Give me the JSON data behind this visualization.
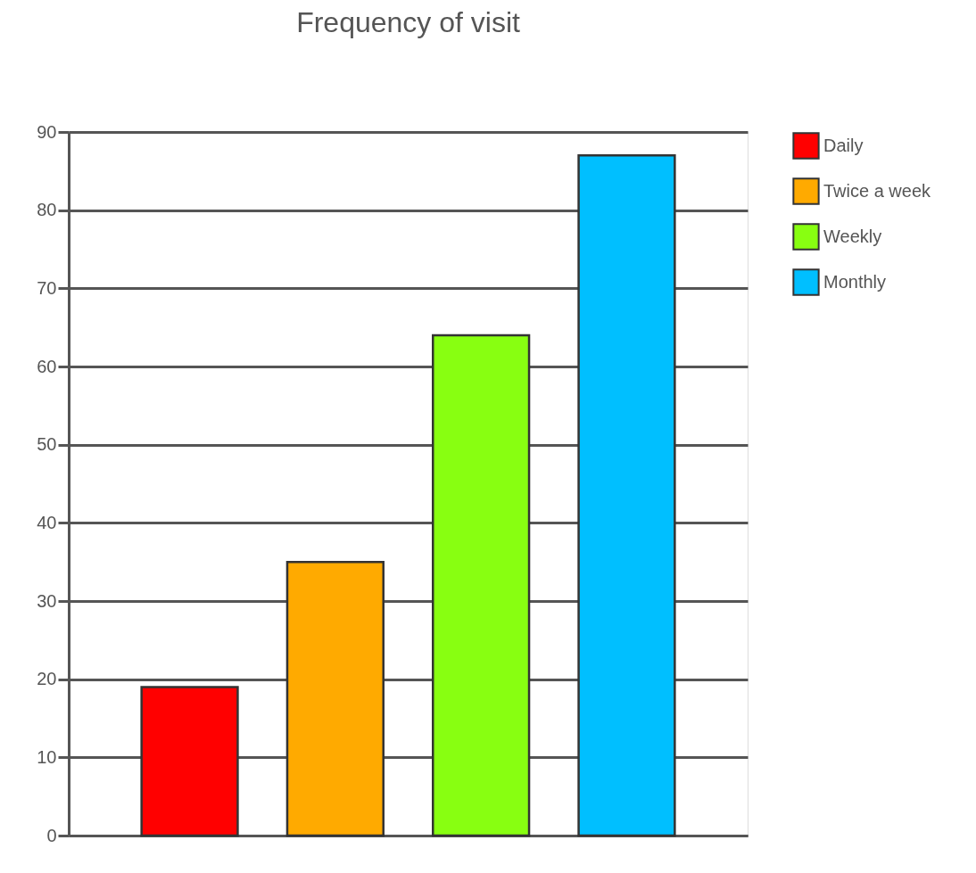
{
  "chart_data": {
    "type": "bar",
    "title": "Frequency of visit",
    "categories": [
      null
    ],
    "series": [
      {
        "name": "Daily",
        "color": "#ff0000",
        "values": [
          19
        ]
      },
      {
        "name": "Twice a week",
        "color": "#ffaa00",
        "values": [
          35
        ]
      },
      {
        "name": "Weekly",
        "color": "#88ff11",
        "values": [
          64
        ]
      },
      {
        "name": "Monthly",
        "color": "#00bfff",
        "values": [
          87
        ]
      }
    ],
    "ylim": [
      0,
      90
    ],
    "yticks": [
      0,
      10,
      20,
      30,
      40,
      50,
      60,
      70,
      80,
      90
    ],
    "grid": "y",
    "legend": "right",
    "tick_labels": "y"
  }
}
